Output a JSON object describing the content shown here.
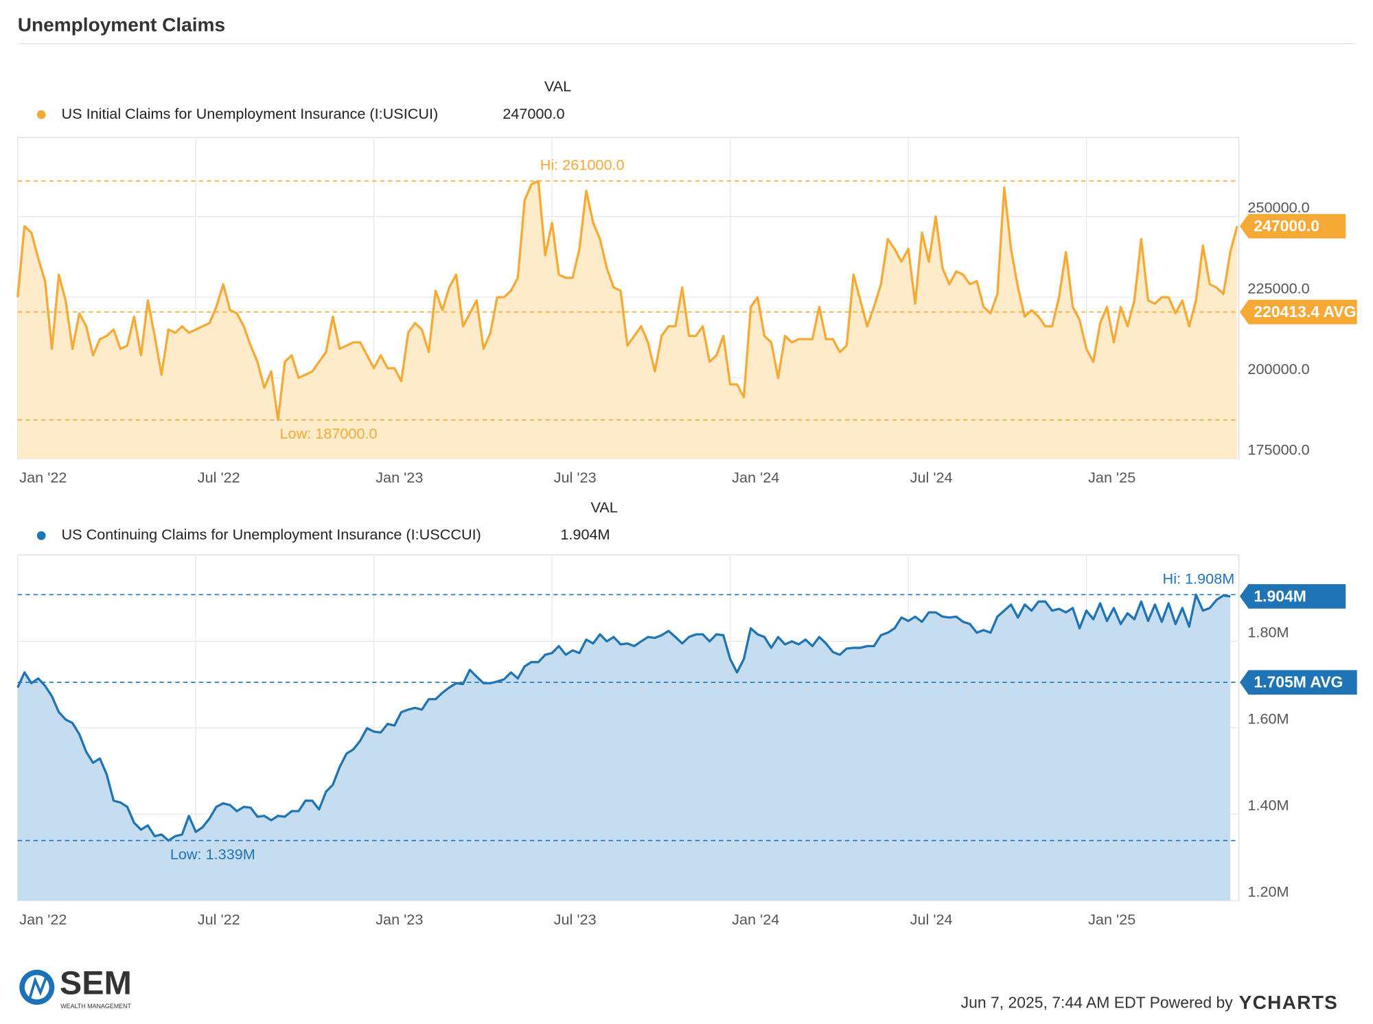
{
  "header": {
    "title": "Unemployment Claims"
  },
  "chart_data": [
    {
      "type": "area",
      "column_header": "VAL",
      "series": [
        {
          "name": "US Initial Claims for Unemployment Insurance (I:USICUI)",
          "color": "#f7a935",
          "fill": "#fdebc9",
          "values": [
            225000,
            247000,
            245000,
            237000,
            230000,
            209000,
            232000,
            224000,
            209000,
            220000,
            216000,
            207000,
            212000,
            213000,
            215000,
            209000,
            210000,
            219000,
            207000,
            224000,
            213000,
            201000,
            215000,
            214000,
            216000,
            214000,
            215000,
            216000,
            217000,
            222000,
            229000,
            221000,
            220000,
            216000,
            210000,
            205000,
            197000,
            202000,
            187000,
            205000,
            207000,
            200000,
            201000,
            202000,
            205000,
            208000,
            219000,
            209000,
            210000,
            211000,
            211000,
            207000,
            203000,
            207000,
            203000,
            203000,
            199000,
            214000,
            217000,
            215000,
            208000,
            227000,
            221000,
            228000,
            232000,
            216000,
            220000,
            224000,
            209000,
            214000,
            225000,
            225000,
            227000,
            231000,
            255000,
            260000,
            261000,
            238000,
            248000,
            232000,
            231000,
            231000,
            240000,
            258000,
            248000,
            243000,
            234000,
            228000,
            227000,
            210000,
            213000,
            216000,
            211000,
            202000,
            213000,
            216000,
            216000,
            228000,
            213000,
            213000,
            216000,
            205000,
            207000,
            213000,
            198000,
            198000,
            194000,
            222000,
            225000,
            213000,
            211000,
            200000,
            213000,
            211000,
            212000,
            212000,
            212000,
            222000,
            212000,
            212000,
            208000,
            210000,
            232000,
            224000,
            216000,
            222000,
            229000,
            243000,
            240000,
            236000,
            240000,
            223000,
            245000,
            236000,
            250000,
            234000,
            229000,
            233000,
            232000,
            229000,
            230000,
            222000,
            220000,
            226000,
            259000,
            240000,
            228000,
            219000,
            221000,
            219000,
            216000,
            216000,
            225000,
            239000,
            222000,
            218000,
            209000,
            205000,
            217000,
            222000,
            211000,
            222000,
            216000,
            224000,
            243000,
            224000,
            223000,
            225000,
            225000,
            220000,
            224000,
            216000,
            224000,
            241000,
            229000,
            228000,
            226000,
            239000,
            247000
          ]
        }
      ],
      "current": {
        "value": 247000,
        "label": "247000.0"
      },
      "hi": {
        "value": 261000,
        "label": "Hi: 261000.0"
      },
      "low": {
        "value": 187000,
        "label": "Low: 187000.0"
      },
      "average": {
        "value": 220413.4,
        "label": "220413.4 AVG"
      },
      "xlim": [
        0,
        178
      ],
      "xticks": [
        {
          "value": 0,
          "label": "Jan '22"
        },
        {
          "value": 26,
          "label": "Jul '22"
        },
        {
          "value": 52,
          "label": "Jan '23"
        },
        {
          "value": 78,
          "label": "Jul '23"
        },
        {
          "value": 104,
          "label": "Jan '24"
        },
        {
          "value": 130,
          "label": "Jul '24"
        },
        {
          "value": 156,
          "label": "Jan '25"
        }
      ],
      "ylim": [
        175000,
        274500
      ],
      "yticks": [
        {
          "value": 175000,
          "label": "175000.0"
        },
        {
          "value": 200000,
          "label": "200000.0"
        },
        {
          "value": 225000,
          "label": "225000.0"
        },
        {
          "value": 250000,
          "label": "250000.0"
        }
      ],
      "grid": true
    },
    {
      "type": "area",
      "column_header": "VAL",
      "series": [
        {
          "name": "US Continuing Claims for Unemployment Insurance (I:USCCUI)",
          "color": "#1f74b5",
          "fill": "#c6dcef",
          "values": [
            1693000,
            1728000,
            1703000,
            1714000,
            1697000,
            1673000,
            1636000,
            1619000,
            1611000,
            1585000,
            1544000,
            1519000,
            1529000,
            1492000,
            1431000,
            1427000,
            1417000,
            1380000,
            1364000,
            1374000,
            1349000,
            1353000,
            1339000,
            1349000,
            1353000,
            1396000,
            1359000,
            1370000,
            1390000,
            1417000,
            1425000,
            1421000,
            1407000,
            1417000,
            1415000,
            1394000,
            1396000,
            1386000,
            1396000,
            1394000,
            1407000,
            1407000,
            1431000,
            1431000,
            1411000,
            1452000,
            1468000,
            1509000,
            1540000,
            1550000,
            1570000,
            1599000,
            1591000,
            1589000,
            1609000,
            1605000,
            1636000,
            1642000,
            1646000,
            1642000,
            1666000,
            1666000,
            1681000,
            1693000,
            1703000,
            1701000,
            1734000,
            1718000,
            1703000,
            1703000,
            1707000,
            1712000,
            1728000,
            1714000,
            1742000,
            1752000,
            1752000,
            1769000,
            1773000,
            1789000,
            1769000,
            1779000,
            1773000,
            1804000,
            1795000,
            1816000,
            1800000,
            1810000,
            1793000,
            1795000,
            1789000,
            1800000,
            1810000,
            1808000,
            1814000,
            1824000,
            1810000,
            1795000,
            1810000,
            1816000,
            1816000,
            1800000,
            1816000,
            1814000,
            1759000,
            1728000,
            1759000,
            1830000,
            1816000,
            1810000,
            1785000,
            1810000,
            1793000,
            1800000,
            1793000,
            1804000,
            1789000,
            1810000,
            1795000,
            1775000,
            1769000,
            1783000,
            1785000,
            1785000,
            1789000,
            1789000,
            1814000,
            1820000,
            1830000,
            1855000,
            1847000,
            1857000,
            1845000,
            1867000,
            1867000,
            1857000,
            1855000,
            1857000,
            1845000,
            1840000,
            1820000,
            1826000,
            1820000,
            1857000,
            1871000,
            1885000,
            1855000,
            1885000,
            1871000,
            1892000,
            1892000,
            1871000,
            1875000,
            1867000,
            1877000,
            1830000,
            1871000,
            1851000,
            1888000,
            1847000,
            1877000,
            1840000,
            1865000,
            1851000,
            1892000,
            1847000,
            1885000,
            1845000,
            1888000,
            1840000,
            1877000,
            1834000,
            1908000,
            1871000,
            1877000,
            1896000,
            1906000,
            1904000
          ]
        }
      ],
      "current": {
        "value": 1904000,
        "label": "1.904M"
      },
      "hi": {
        "value": 1908000,
        "label": "Hi: 1.908M"
      },
      "low": {
        "value": 1339000,
        "label": "Low: 1.339M"
      },
      "average": {
        "value": 1705000,
        "label": "1.705M AVG"
      },
      "xlim": [
        0,
        178
      ],
      "xticks": [
        {
          "value": 0,
          "label": "Jan '22"
        },
        {
          "value": 26,
          "label": "Jul '22"
        },
        {
          "value": 52,
          "label": "Jan '23"
        },
        {
          "value": 78,
          "label": "Jul '23"
        },
        {
          "value": 104,
          "label": "Jan '24"
        },
        {
          "value": 130,
          "label": "Jul '24"
        },
        {
          "value": 156,
          "label": "Jan '25"
        }
      ],
      "ylim": [
        1200000,
        2000000
      ],
      "yticks": [
        {
          "value": 1200000,
          "label": "1.20M"
        },
        {
          "value": 1400000,
          "label": "1.40M"
        },
        {
          "value": 1600000,
          "label": "1.60M"
        },
        {
          "value": 1800000,
          "label": "1.80M"
        }
      ],
      "grid": true
    }
  ],
  "footer": {
    "logo_text": "SEM",
    "logo_sub": "WEALTH MANAGEMENT",
    "timestamp": "Jun 7, 2025, 7:44 AM EDT Powered by",
    "brand": "YCHARTS"
  }
}
